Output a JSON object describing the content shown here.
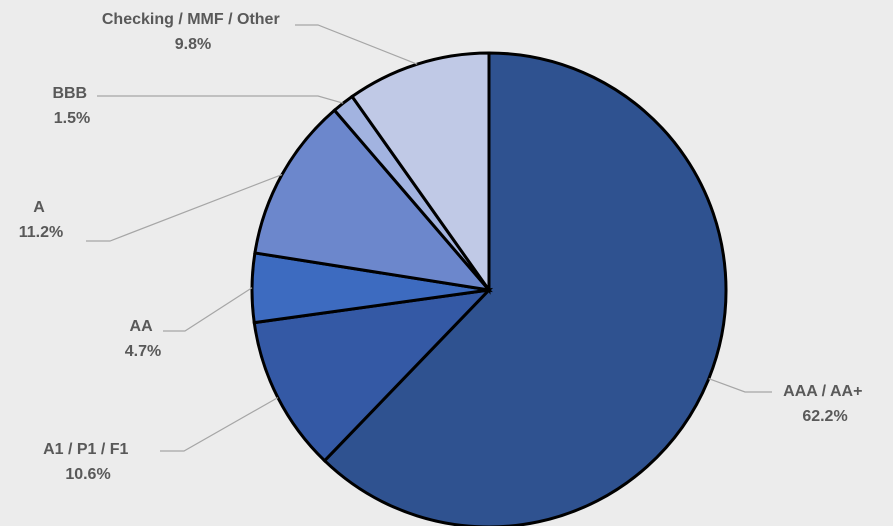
{
  "chart_data": {
    "type": "pie",
    "title": "",
    "start_angle_deg": 0,
    "direction": "clockwise",
    "legend": "none",
    "slices": [
      {
        "label": "AAA / AA+",
        "value": 62.2,
        "display": "62.2%",
        "color": "#2f5290"
      },
      {
        "label": "A1 / P1 / F1",
        "value": 10.6,
        "display": "10.6%",
        "color": "#3459a5"
      },
      {
        "label": "AA",
        "value": 4.7,
        "display": "4.7%",
        "color": "#3d6bc0"
      },
      {
        "label": "A",
        "value": 11.2,
        "display": "11.2%",
        "color": "#6c87cc"
      },
      {
        "label": "BBB",
        "value": 1.5,
        "display": "1.5%",
        "color": "#a2b3e0"
      },
      {
        "label": "Checking / MMF / Other",
        "value": 9.8,
        "display": "9.8%",
        "color": "#c0c9e6"
      }
    ]
  }
}
